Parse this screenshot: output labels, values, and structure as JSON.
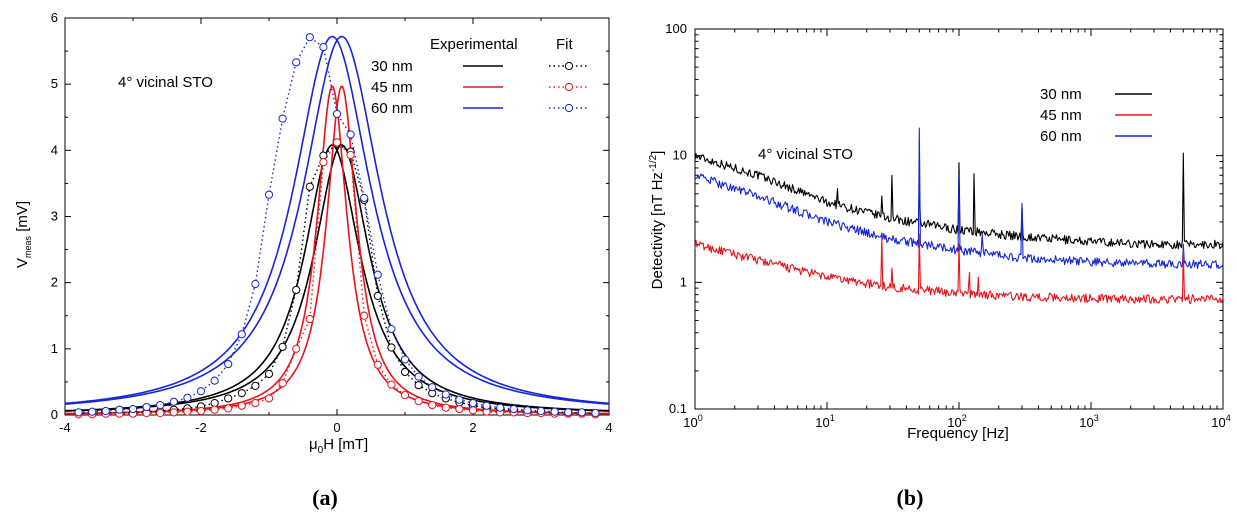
{
  "colors": {
    "30nm": "#000000",
    "45nm": "#e8141b",
    "60nm": "#1626d6"
  },
  "chart_data": [
    {
      "type": "line",
      "panel_label": "(a)",
      "annotation": "4° vicinal STO",
      "xlabel_main": "μ",
      "xlabel_sub": "0",
      "xlabel_rest": "H [mT]",
      "ylabel_main": "V",
      "ylabel_sub": "meas",
      "ylabel_rest": " [mV]",
      "xlim": [
        -4,
        4
      ],
      "ylim": [
        0,
        6
      ],
      "xticks": [
        -4,
        -2,
        0,
        2,
        4
      ],
      "yticks": [
        0,
        1,
        2,
        3,
        4,
        5,
        6
      ],
      "legend": {
        "placement": "top-right",
        "header_experimental": "Experimental",
        "header_fit": "Fit"
      },
      "series": [
        {
          "name": "30 nm",
          "color": "#000000",
          "experimental_peak": 4.08,
          "experimental_half_width": 0.5,
          "fit_points": {
            "x": [
              -3.8,
              -3.6,
              -3.4,
              -3.2,
              -3.0,
              -2.8,
              -2.6,
              -2.4,
              -2.2,
              -2.0,
              -1.8,
              -1.6,
              -1.4,
              -1.2,
              -1.0,
              -0.8,
              -0.6,
              -0.4,
              -0.2,
              0.0,
              0.2,
              0.4,
              0.6,
              0.8,
              1.0,
              1.2,
              1.4,
              1.6,
              1.8,
              2.0,
              2.2,
              2.4,
              2.6,
              2.8,
              3.0,
              3.2,
              3.4,
              3.6,
              3.8
            ],
            "y": [
              0.02,
              0.02,
              0.03,
              0.03,
              0.04,
              0.05,
              0.06,
              0.08,
              0.1,
              0.13,
              0.18,
              0.25,
              0.33,
              0.44,
              0.62,
              1.03,
              1.89,
              3.45,
              3.92,
              4.1,
              3.98,
              3.25,
              1.8,
              1.02,
              0.65,
              0.45,
              0.33,
              0.25,
              0.19,
              0.14,
              0.11,
              0.09,
              0.07,
              0.06,
              0.05,
              0.04,
              0.03,
              0.03,
              0.02
            ]
          }
        },
        {
          "name": "45 nm",
          "color": "#e8141b",
          "experimental_peak": 4.97,
          "experimental_half_width": 0.27,
          "fit_points": {
            "x": [
              -3.8,
              -3.6,
              -3.4,
              -3.2,
              -3.0,
              -2.8,
              -2.6,
              -2.4,
              -2.2,
              -2.0,
              -1.8,
              -1.6,
              -1.4,
              -1.2,
              -1.0,
              -0.8,
              -0.6,
              -0.4,
              -0.2,
              0.0,
              0.2,
              0.4,
              0.6,
              0.8,
              1.0,
              1.2,
              1.4,
              1.6,
              1.8,
              2.0,
              2.2,
              2.4,
              2.6,
              2.8,
              3.0,
              3.2,
              3.4,
              3.6,
              3.8
            ],
            "y": [
              0.01,
              0.01,
              0.02,
              0.02,
              0.02,
              0.03,
              0.03,
              0.04,
              0.05,
              0.06,
              0.08,
              0.1,
              0.14,
              0.18,
              0.25,
              0.48,
              1.0,
              1.45,
              3.82,
              4.12,
              3.93,
              1.5,
              0.76,
              0.46,
              0.3,
              0.21,
              0.15,
              0.11,
              0.09,
              0.07,
              0.05,
              0.04,
              0.04,
              0.03,
              0.03,
              0.02,
              0.02,
              0.02,
              0.01
            ]
          }
        },
        {
          "name": "60 nm",
          "color": "#1626d6",
          "experimental_peak": 5.72,
          "experimental_half_width": 0.7,
          "fit_points": {
            "x": [
              -3.8,
              -3.6,
              -3.4,
              -3.2,
              -3.0,
              -2.8,
              -2.6,
              -2.4,
              -2.2,
              -2.0,
              -1.8,
              -1.6,
              -1.4,
              -1.2,
              -1.0,
              -0.8,
              -0.6,
              -0.4,
              -0.2,
              0.0,
              0.2,
              0.4,
              0.6,
              0.8,
              1.0,
              1.2,
              1.4,
              1.6,
              1.8,
              2.0,
              2.2,
              2.4,
              2.6,
              2.8,
              3.0,
              3.2,
              3.4,
              3.6,
              3.8
            ],
            "y": [
              0.04,
              0.05,
              0.06,
              0.08,
              0.09,
              0.12,
              0.15,
              0.2,
              0.26,
              0.36,
              0.52,
              0.77,
              1.22,
              1.98,
              3.33,
              4.48,
              5.33,
              5.71,
              5.56,
              4.55,
              4.24,
              3.28,
              2.12,
              1.3,
              0.84,
              0.58,
              0.42,
              0.31,
              0.23,
              0.18,
              0.14,
              0.11,
              0.09,
              0.07,
              0.06,
              0.05,
              0.04,
              0.04,
              0.03
            ]
          }
        }
      ]
    },
    {
      "type": "line",
      "panel_label": "(b)",
      "annotation": "4° vicinal STO",
      "xlabel": "Frequency [Hz]",
      "ylabel_main": "Detectivity [nT Hz",
      "ylabel_sup": "-1/2",
      "ylabel_end": "]",
      "xscale": "log",
      "yscale": "log",
      "xlim": [
        1,
        10000
      ],
      "ylim": [
        0.1,
        100
      ],
      "xticks": [
        1,
        10,
        100,
        1000,
        10000
      ],
      "xtick_labels": [
        {
          "base": "10",
          "exp": "0"
        },
        {
          "base": "10",
          "exp": "1"
        },
        {
          "base": "10",
          "exp": "2"
        },
        {
          "base": "10",
          "exp": "3"
        },
        {
          "base": "10",
          "exp": "4"
        }
      ],
      "yticks": [
        0.1,
        1,
        10,
        100
      ],
      "ytick_labels": [
        "0.1",
        "1",
        "10",
        "100"
      ],
      "legend": {
        "placement": "top-right"
      },
      "series": [
        {
          "name": "30 nm",
          "color": "#000000",
          "baseline": {
            "f": [
              1,
              3,
              10,
              30,
              100,
              300,
              1000,
              3000,
              10000
            ],
            "d": [
              10.0,
              7.0,
              4.3,
              3.2,
              2.6,
              2.3,
              2.1,
              2.0,
              2.0
            ]
          },
          "spikes": [
            {
              "f": 12,
              "d": 5.5
            },
            {
              "f": 26,
              "d": 4.8
            },
            {
              "f": 31,
              "d": 7.0
            },
            {
              "f": 50,
              "d": 5.5
            },
            {
              "f": 100,
              "d": 8.8
            },
            {
              "f": 130,
              "d": 7.2
            },
            {
              "f": 300,
              "d": 4.0
            },
            {
              "f": 5000,
              "d": 10.5
            }
          ]
        },
        {
          "name": "45 nm",
          "color": "#e8141b",
          "baseline": {
            "f": [
              1,
              3,
              10,
              30,
              100,
              300,
              1000,
              3000,
              10000
            ],
            "d": [
              2.0,
              1.5,
              1.1,
              0.92,
              0.82,
              0.77,
              0.75,
              0.74,
              0.74
            ]
          },
          "spikes": [
            {
              "f": 26,
              "d": 2.3
            },
            {
              "f": 31,
              "d": 1.3
            },
            {
              "f": 50,
              "d": 2.4
            },
            {
              "f": 100,
              "d": 2.0
            },
            {
              "f": 120,
              "d": 1.2
            },
            {
              "f": 140,
              "d": 1.1
            },
            {
              "f": 5000,
              "d": 1.8
            }
          ]
        },
        {
          "name": "60 nm",
          "color": "#1626d6",
          "baseline": {
            "f": [
              1,
              3,
              10,
              30,
              100,
              300,
              1000,
              3000,
              10000
            ],
            "d": [
              7.0,
              4.8,
              3.0,
              2.2,
              1.8,
              1.55,
              1.45,
              1.4,
              1.38
            ]
          },
          "spikes": [
            {
              "f": 20,
              "d": 2.6
            },
            {
              "f": 50,
              "d": 16.5
            },
            {
              "f": 100,
              "d": 7.0
            },
            {
              "f": 150,
              "d": 2.4
            },
            {
              "f": 300,
              "d": 4.2
            },
            {
              "f": 5000,
              "d": 2.0
            }
          ]
        }
      ]
    }
  ]
}
